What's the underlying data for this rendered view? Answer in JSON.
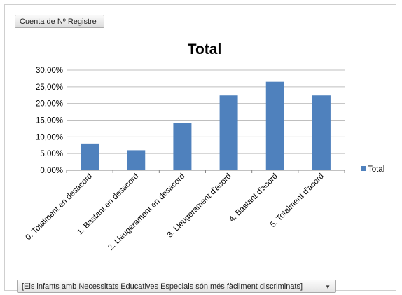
{
  "field_button": {
    "label": "Cuenta de Nº Registre"
  },
  "filter_dropdown": {
    "selected": "[Els infants amb Necessitats Educatives Especials són més fàcilment discriminats]",
    "arrow_icon": "dropdown-arrow-icon"
  },
  "chart_data": {
    "type": "bar",
    "title": "Total",
    "xlabel": "",
    "ylabel": "",
    "categories": [
      "0. Totalment en desacord",
      "1. Bastant en desacord",
      "2. Lleugerament en desacord",
      "3. Lleugerament d'acord",
      "4. Bastant d'acord",
      "5. Totalment d'acord"
    ],
    "series": [
      {
        "name": "Total",
        "values": [
          8.0,
          6.0,
          14.2,
          22.4,
          26.5,
          22.4
        ],
        "color": "#4f81bd"
      }
    ],
    "ylim": [
      0,
      30
    ],
    "yticks": [
      "0,00%",
      "5,00%",
      "10,00%",
      "15,00%",
      "20,00%",
      "25,00%",
      "30,00%"
    ],
    "grid": true,
    "legend": "right"
  }
}
